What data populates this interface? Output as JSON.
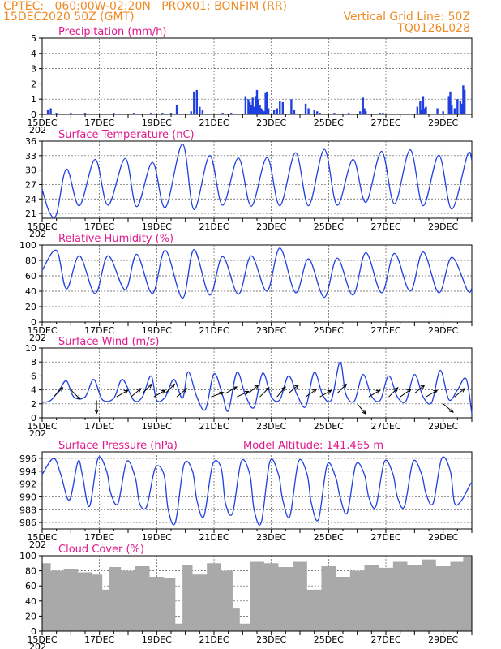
{
  "header": {
    "line1": "CPTEC:   060:00W-02:20N   PROX01: BONFIM (RR)",
    "line2": "15DEC2020 50Z (GMT)",
    "right1": "Vertical Grid Line: 50Z",
    "right2": "TQ0126L028"
  },
  "colors": {
    "header": "#f08a24",
    "title": "#e0188c",
    "series": "#1f3fe0",
    "cloud": "#a9a9a9",
    "arrow": "#000000"
  },
  "x_tick_labels": [
    "15DEC",
    "17DEC",
    "19DEC",
    "21DEC",
    "23DEC",
    "25DEC",
    "27DEC",
    "29DEC"
  ],
  "x_overflow_label": "202",
  "chart_data": [
    {
      "id": "precip",
      "type": "bar",
      "title": "Precipitation (mm/h)",
      "x_range_days": [
        0,
        15
      ],
      "ylim": [
        0,
        5
      ],
      "yticks": [
        0,
        1,
        2,
        3,
        4,
        5
      ],
      "grid": true,
      "x": [
        0.2,
        0.3,
        0.5,
        1.0,
        1.5,
        2.5,
        3.2,
        3.8,
        4.2,
        4.5,
        4.7,
        5.2,
        5.3,
        5.4,
        5.5,
        5.6,
        6.3,
        6.6,
        7.1,
        7.2,
        7.25,
        7.3,
        7.35,
        7.4,
        7.45,
        7.5,
        7.55,
        7.6,
        7.65,
        7.7,
        7.75,
        7.8,
        7.85,
        7.9,
        8.1,
        8.2,
        8.3,
        8.4,
        8.7,
        8.8,
        9.2,
        9.3,
        9.5,
        9.6,
        9.7,
        10.2,
        10.7,
        11.1,
        11.2,
        11.25,
        11.3,
        11.8,
        11.9,
        13.1,
        13.2,
        13.25,
        13.3,
        13.35,
        13.4,
        13.8,
        14.0,
        14.2,
        14.25,
        14.3,
        14.4,
        14.5,
        14.6,
        14.65,
        14.7,
        14.75
      ],
      "values": [
        0.3,
        0.4,
        0.1,
        0.1,
        0.1,
        0.1,
        0.1,
        0.1,
        0.1,
        0.1,
        0.6,
        0.2,
        1.5,
        1.6,
        0.5,
        0.3,
        0.1,
        0.1,
        1.2,
        1.0,
        0.8,
        0.6,
        1.1,
        0.5,
        1.2,
        1.6,
        1.0,
        0.6,
        0.4,
        0.3,
        0.2,
        1.4,
        1.5,
        0.4,
        0.3,
        0.4,
        0.9,
        0.8,
        1.0,
        0.3,
        0.7,
        0.4,
        0.3,
        0.2,
        0.1,
        0.1,
        0.1,
        0.2,
        1.1,
        0.4,
        0.2,
        0.1,
        0.1,
        0.5,
        0.9,
        0.3,
        1.2,
        0.4,
        0.5,
        0.4,
        0.2,
        1.2,
        1.5,
        0.6,
        0.4,
        1.0,
        0.9,
        0.7,
        1.9,
        1.6
      ]
    },
    {
      "id": "temp",
      "type": "line",
      "title": "Surface Temperature (nC)",
      "x_range_days": [
        0,
        15
      ],
      "ylim": [
        20,
        36
      ],
      "yticks": [
        21,
        24,
        27,
        30,
        33,
        36
      ],
      "grid": true,
      "x": [
        0,
        0.25,
        0.5,
        0.85,
        1.3,
        1.85,
        2.3,
        2.9,
        3.3,
        3.85,
        4.3,
        4.9,
        5.3,
        5.85,
        6.3,
        6.85,
        7.3,
        7.85,
        8.3,
        8.85,
        9.3,
        9.85,
        10.3,
        10.85,
        11.3,
        11.85,
        12.3,
        12.85,
        13.3,
        13.85,
        14.3,
        14.85,
        15.0
      ],
      "values": [
        26.0,
        21.3,
        20.8,
        30.2,
        22.6,
        32.2,
        22.7,
        32.4,
        22.4,
        31.6,
        22.2,
        35.4,
        21.8,
        33.0,
        22.7,
        32.5,
        22.5,
        32.6,
        22.6,
        33.6,
        22.6,
        34.3,
        22.7,
        32.2,
        23.3,
        33.9,
        23.0,
        34.2,
        22.6,
        33.1,
        21.9,
        33.2,
        32.0
      ]
    },
    {
      "id": "rh",
      "type": "line",
      "title": "Relative Humidity (%)",
      "x_range_days": [
        0,
        15
      ],
      "ylim": [
        0,
        100
      ],
      "yticks": [
        0,
        20,
        40,
        60,
        80,
        100
      ],
      "grid": true,
      "x": [
        0,
        0.5,
        0.85,
        1.3,
        1.85,
        2.3,
        2.9,
        3.3,
        3.85,
        4.3,
        4.9,
        5.3,
        5.85,
        6.3,
        6.85,
        7.3,
        7.85,
        8.3,
        8.85,
        9.3,
        9.85,
        10.3,
        10.85,
        11.3,
        11.85,
        12.3,
        12.85,
        13.3,
        13.85,
        14.3,
        14.85,
        15.0
      ],
      "values": [
        67,
        93,
        43,
        86,
        37,
        86,
        42,
        88,
        37,
        93,
        31,
        94,
        35,
        85,
        36,
        86,
        40,
        96,
        38,
        82,
        32,
        83,
        35,
        90,
        38,
        89,
        40,
        91,
        38,
        84,
        41,
        44
      ]
    },
    {
      "id": "wind",
      "type": "line",
      "title": "Surface Wind (m/s)",
      "x_range_days": [
        0,
        15
      ],
      "ylim": [
        0,
        10
      ],
      "yticks": [
        0,
        2,
        4,
        6,
        8,
        10
      ],
      "grid": true,
      "x": [
        0,
        0.3,
        0.6,
        0.85,
        1.1,
        1.5,
        1.8,
        2.1,
        2.5,
        2.8,
        3.2,
        3.5,
        3.8,
        4.0,
        4.3,
        4.6,
        4.9,
        5.1,
        5.4,
        5.7,
        6.0,
        6.3,
        6.5,
        6.8,
        7.1,
        7.4,
        7.7,
        8.0,
        8.3,
        8.6,
        8.9,
        9.2,
        9.5,
        9.8,
        10.1,
        10.4,
        10.6,
        10.9,
        11.2,
        11.5,
        11.8,
        12.1,
        12.4,
        12.7,
        13.0,
        13.3,
        13.6,
        13.9,
        14.2,
        14.5,
        14.8,
        15.0
      ],
      "values": [
        2.2,
        2.5,
        4.0,
        5.3,
        3.0,
        3.0,
        5.5,
        2.6,
        2.8,
        5.5,
        2.5,
        3.0,
        6.0,
        2.5,
        3.0,
        5.5,
        2.8,
        6.6,
        3.0,
        1.2,
        6.3,
        3.2,
        1.0,
        6.5,
        3.2,
        1.5,
        6.4,
        3.0,
        2.6,
        6.0,
        3.3,
        1.6,
        6.5,
        3.2,
        2.6,
        8.0,
        3.4,
        2.4,
        6.2,
        3.1,
        2.5,
        6.0,
        3.0,
        2.4,
        6.2,
        3.0,
        2.2,
        6.8,
        2.6,
        4.0,
        5.6,
        0.6
      ],
      "arrows_x": [
        0.4,
        1.0,
        1.9,
        2.6,
        3.1,
        3.5,
        3.9,
        4.3,
        4.7,
        5.9,
        6.4,
        6.8,
        7.2,
        7.6,
        8.2,
        8.6,
        9.2,
        9.7,
        10.3,
        11.0,
        11.4,
        12.1,
        12.5,
        13.0,
        13.4,
        14.0,
        14.4
      ],
      "arrows_dir_deg": [
        45,
        315,
        270,
        30,
        40,
        45,
        30,
        45,
        40,
        20,
        30,
        25,
        40,
        45,
        50,
        40,
        35,
        30,
        45,
        310,
        30,
        45,
        35,
        40,
        30,
        320,
        40
      ],
      "arrows_speed": [
        3,
        4,
        2.5,
        3,
        3,
        3.5,
        3,
        3.5,
        3,
        3,
        3.5,
        3,
        3.5,
        3,
        3,
        3.5,
        3,
        3,
        3.5,
        2,
        3,
        3,
        3,
        3.5,
        3,
        2,
        3
      ]
    },
    {
      "id": "pres",
      "type": "line",
      "title": "Surface Pressure (hPa)",
      "annotation": "Model Altitude: 141.465 m",
      "x_range_days": [
        0,
        15
      ],
      "ylim": [
        985,
        997
      ],
      "yticks": [
        986,
        988,
        990,
        992,
        994,
        996
      ],
      "grid": true,
      "x": [
        0,
        0.4,
        0.65,
        0.95,
        1.25,
        1.4,
        1.65,
        1.95,
        2.25,
        2.4,
        2.65,
        2.95,
        3.25,
        3.4,
        3.65,
        3.95,
        4.25,
        4.4,
        4.65,
        4.95,
        5.25,
        5.4,
        5.65,
        5.95,
        6.25,
        6.4,
        6.65,
        6.95,
        7.25,
        7.4,
        7.65,
        7.95,
        8.25,
        8.4,
        8.65,
        8.95,
        9.25,
        9.4,
        9.65,
        9.95,
        10.25,
        10.4,
        10.65,
        10.95,
        11.25,
        11.4,
        11.65,
        11.95,
        12.25,
        12.4,
        12.65,
        12.95,
        13.25,
        13.4,
        13.65,
        13.95,
        14.25,
        14.4,
        14.65,
        14.95,
        15.0
      ],
      "values": [
        993.5,
        996.0,
        993.5,
        989.5,
        995.5,
        993.5,
        988.5,
        996.0,
        994.0,
        990.5,
        989.0,
        995.5,
        993.0,
        989.0,
        988.5,
        994.5,
        993.5,
        988.0,
        986.0,
        995.0,
        994.0,
        989.5,
        987.0,
        995.0,
        994.5,
        989.0,
        987.5,
        995.5,
        993.5,
        988.0,
        986.0,
        995.5,
        993.5,
        989.5,
        987.0,
        995.5,
        993.5,
        989.0,
        986.5,
        995.0,
        993.0,
        990.0,
        987.5,
        995.0,
        993.5,
        990.0,
        988.5,
        995.5,
        993.5,
        990.0,
        988.5,
        995.5,
        993.5,
        990.5,
        989.0,
        996.0,
        994.0,
        989.0,
        989.5,
        992.0,
        992.0
      ]
    },
    {
      "id": "cloud",
      "type": "bar",
      "title": "Cloud Cover (%)",
      "x_range_days": [
        0,
        15
      ],
      "ylim": [
        0,
        100
      ],
      "yticks": [
        0,
        20,
        40,
        60,
        80,
        100
      ],
      "grid": true,
      "x": [
        0.1,
        0.5,
        1.0,
        1.5,
        2.0,
        2.2,
        2.5,
        3.0,
        3.5,
        4.0,
        4.5,
        4.8,
        5.0,
        5.5,
        6.0,
        6.5,
        6.8,
        7.0,
        7.5,
        8.0,
        8.5,
        9.0,
        9.5,
        10.0,
        10.5,
        11.0,
        11.5,
        12.0,
        12.5,
        13.0,
        13.5,
        14.0,
        14.5,
        14.9
      ],
      "values": [
        90,
        80,
        82,
        78,
        75,
        55,
        85,
        80,
        86,
        72,
        70,
        10,
        88,
        75,
        90,
        80,
        30,
        10,
        92,
        90,
        85,
        92,
        55,
        86,
        72,
        80,
        88,
        84,
        92,
        88,
        95,
        86,
        92,
        98
      ]
    }
  ]
}
